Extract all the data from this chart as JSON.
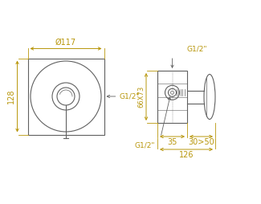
{
  "bg_color": "#ffffff",
  "line_color": "#606060",
  "dim_color": "#b8960a",
  "text_color": "#b8960a",
  "annotations": {
    "diameter": "Ø117",
    "height": "128",
    "g12_left": "G1/2\"",
    "g12_top": "G1/2\"",
    "g12_bottom": "G1/2\"",
    "dim_66x73": "66X73",
    "dim_35": "35",
    "dim_30_50": "30>50",
    "dim_126": "126"
  }
}
